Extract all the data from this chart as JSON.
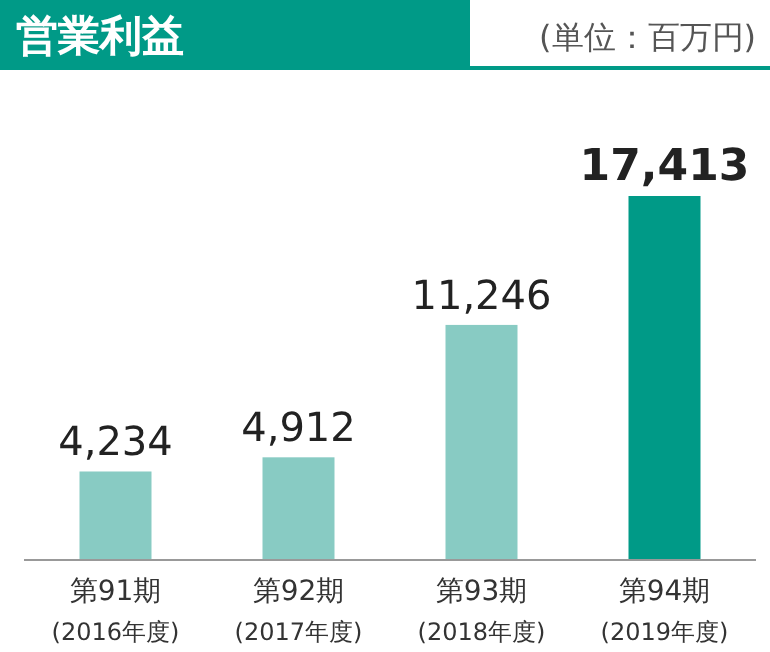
{
  "chart_data": {
    "type": "bar",
    "title": "営業利益",
    "subtitle": "(単位：百万円)",
    "categories": [
      "第91期\n(2016年度)",
      "第92期\n(2017年度)",
      "第93期\n(2018年度)",
      "第94期\n(2019年度)"
    ],
    "values": [
      4234,
      4912,
      11246,
      17413
    ],
    "colors": [
      "#88cbc3",
      "#88cbc3",
      "#88cbc3",
      "#009a87"
    ],
    "value_labels": [
      "4,234",
      "4,912",
      "11,246",
      "17,413"
    ]
  }
}
